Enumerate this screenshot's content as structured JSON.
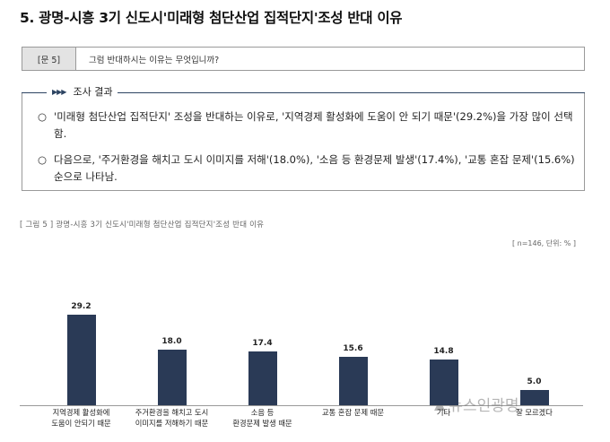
{
  "heading": "5. 광명-시흥 3기 신도시'미래형 첨단산업 집적단지'조성 반대 이유",
  "question": {
    "number": "[문 5]",
    "text": "그럼 반대하시는 이유는 무엇입니까?"
  },
  "results": {
    "title": "조사 결과",
    "arrows": "▶▶▶",
    "bullets": [
      "'미래형 첨단산업 집적단지' 조성을 반대하는 이유로, '지역경제 활성화에 도움이 안 되기 때문'(29.2%)을 가장 많이 선택함.",
      "다음으로, '주거환경을 해치고 도시 이미지를 저해'(18.0%), '소음 등 환경문제 발생'(17.4%), '교통 혼잡 문제'(15.6%) 순으로 나타남."
    ],
    "bullet_symbol": "○"
  },
  "figure": {
    "caption": "[ 그림 5 ] 광명-시흥 3기 신도시'미래형 첨단산업 집적단지'조성 반대 이유",
    "note": "[ n=146, 단위: % ]"
  },
  "chart_data": {
    "type": "bar",
    "categories": [
      "지역경제 활성화에\n도움이 안되기 때문",
      "주거환경을 해치고 도시\n이미지를 저해하기 때문",
      "소음 등\n환경문제 발생 때문",
      "교통 혼잡 문제 때문",
      "기타",
      "잘 모르겠다"
    ],
    "values": [
      29.2,
      18.0,
      17.4,
      15.6,
      14.8,
      5.0
    ],
    "value_labels": [
      "29.2",
      "18.0",
      "17.4",
      "15.6",
      "14.8",
      "5.0"
    ],
    "ylim": [
      0,
      30
    ],
    "grid": false,
    "bar_color": "#2a3a56"
  },
  "watermark": {
    "text": "뉴스인광명",
    "icon": "building-icon"
  }
}
